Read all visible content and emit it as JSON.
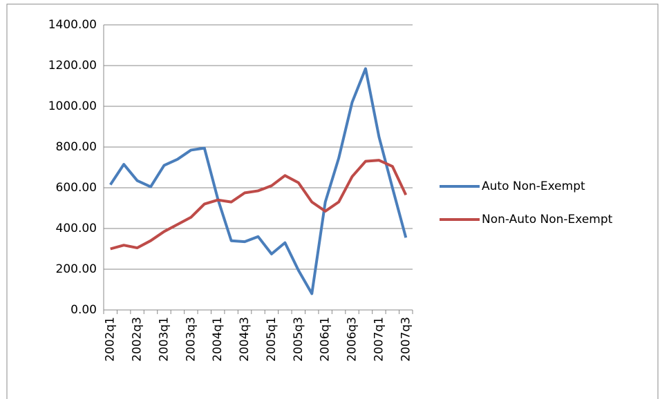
{
  "chart_data": {
    "type": "line",
    "categories": [
      "2002q1",
      null,
      "2002q3",
      null,
      "2003q1",
      null,
      "2003q3",
      null,
      "2004q1",
      null,
      "2004q3",
      null,
      "2005q1",
      null,
      "2005q3",
      null,
      "2006q1",
      null,
      "2006q3",
      null,
      "2007q1",
      null,
      "2007q3"
    ],
    "series": [
      {
        "name": "Auto Non-Exempt",
        "color": "#4a7ebb",
        "values": [
          615,
          715,
          635,
          605,
          710,
          740,
          785,
          795,
          545,
          340,
          335,
          360,
          275,
          330,
          195,
          80,
          530,
          745,
          1020,
          1185,
          850,
          600,
          355
        ]
      },
      {
        "name": "Non-Auto Non-Exempt",
        "color": "#be4b48",
        "values": [
          300,
          318,
          305,
          340,
          385,
          420,
          455,
          520,
          540,
          530,
          575,
          585,
          610,
          660,
          625,
          530,
          485,
          530,
          655,
          730,
          735,
          705,
          565
        ]
      }
    ],
    "ylim": [
      0,
      1400
    ],
    "yticks": [
      {
        "value": 0,
        "label": "0.00"
      },
      {
        "value": 200,
        "label": "200.00"
      },
      {
        "value": 400,
        "label": "400.00"
      },
      {
        "value": 600,
        "label": "600.00"
      },
      {
        "value": 800,
        "label": "800.00"
      },
      {
        "value": 1000,
        "label": "1000.00"
      },
      {
        "value": 1200,
        "label": "1200.00"
      },
      {
        "value": 1400,
        "label": "1400.00"
      }
    ],
    "grid": true,
    "legend": "right"
  }
}
